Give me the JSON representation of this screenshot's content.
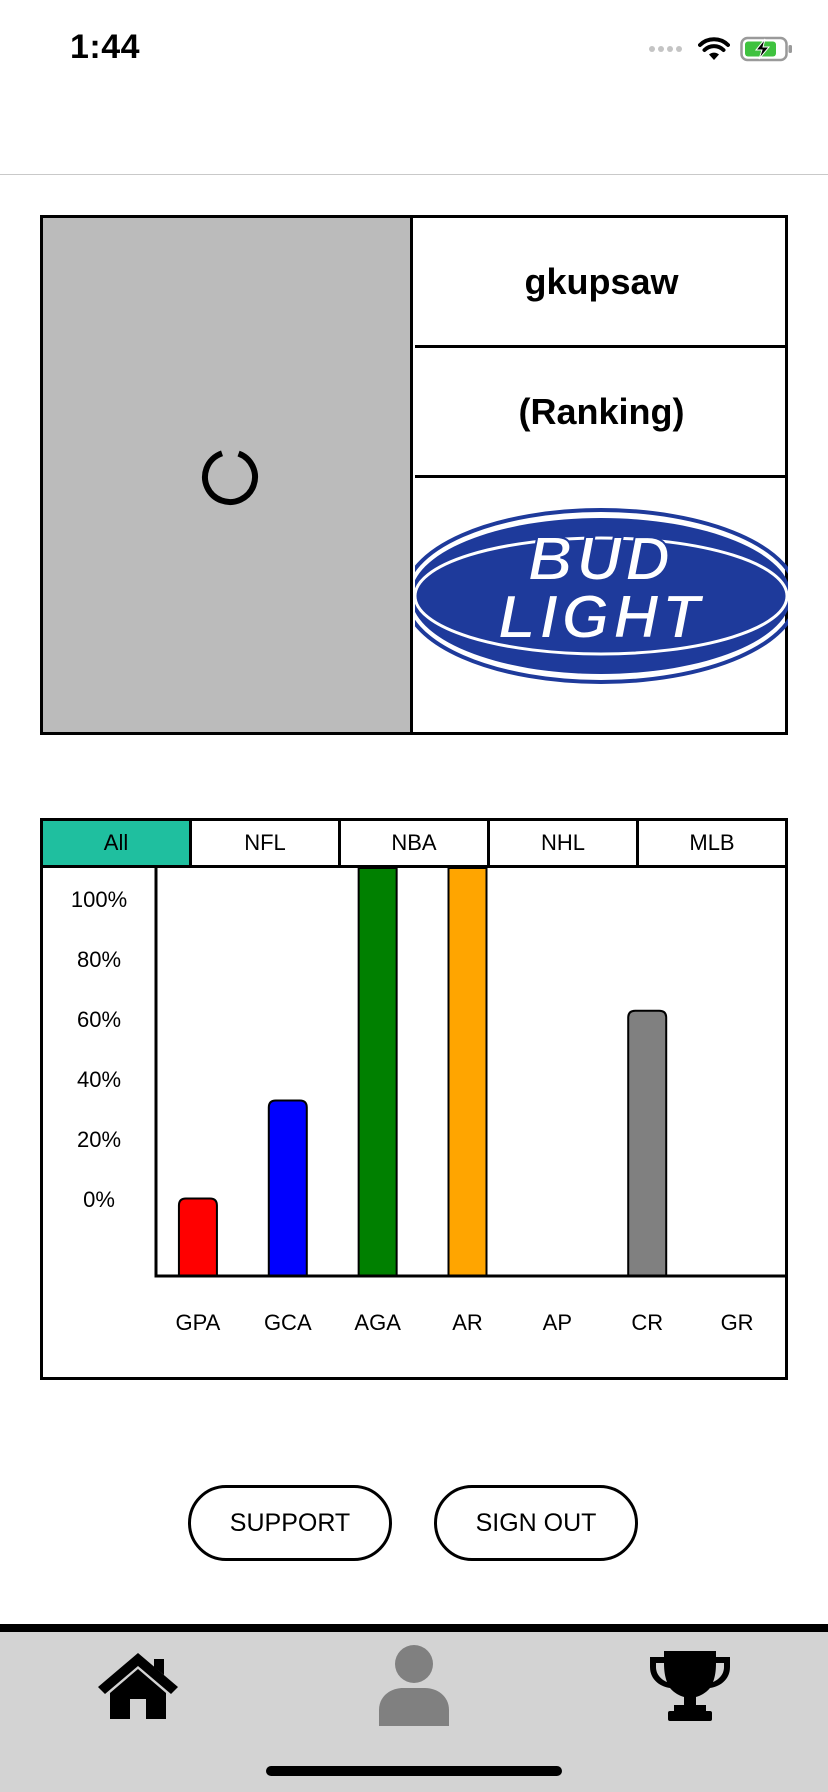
{
  "status_bar": {
    "time": "1:44",
    "icons": [
      "signal-dots-icon",
      "wifi-icon",
      "battery-charging-icon"
    ]
  },
  "profile": {
    "username": "gkupsaw",
    "ranking": "(Ranking)",
    "avatar_state": "loading",
    "sponsor_logo": {
      "line1": "BUD",
      "line2": "LIGHT",
      "color": "#1e3a9b"
    }
  },
  "stats": {
    "tabs": [
      {
        "label": "All",
        "active": true
      },
      {
        "label": "NFL",
        "active": false
      },
      {
        "label": "NBA",
        "active": false
      },
      {
        "label": "NHL",
        "active": false
      },
      {
        "label": "MLB",
        "active": false
      }
    ],
    "active_tab_color": "#1fbf9f"
  },
  "chart_data": {
    "type": "bar",
    "categories": [
      "GPA",
      "GCA",
      "AGA",
      "AR",
      "AP",
      "CR",
      "GR"
    ],
    "values": [
      19,
      43,
      100,
      100,
      0,
      65,
      0
    ],
    "colors": [
      "#ff0000",
      "#0000ff",
      "#008000",
      "#ffa500",
      "#808080",
      "#808080",
      "#808080"
    ],
    "y_ticks": [
      "0%",
      "20%",
      "40%",
      "60%",
      "80%",
      "100%"
    ],
    "ylim": [
      0,
      100
    ],
    "grid": false
  },
  "actions": {
    "support_label": "SUPPORT",
    "signout_label": "SIGN OUT"
  },
  "tab_bar": {
    "items": [
      {
        "icon": "home-icon",
        "selected": false
      },
      {
        "icon": "person-icon",
        "selected": true
      },
      {
        "icon": "trophy-icon",
        "selected": false
      }
    ]
  }
}
